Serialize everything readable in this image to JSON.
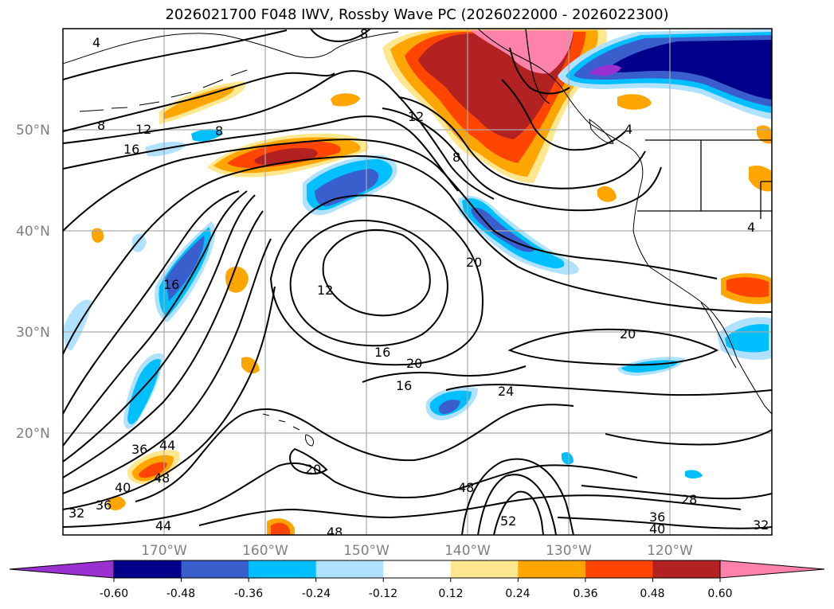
{
  "title": "2026021700 F048 IWV, Rossby Wave PC (2026022000 - 2026022300)",
  "map": {
    "lat_labels": [
      "50°N",
      "40°N",
      "30°N",
      "20°N"
    ],
    "lon_labels": [
      "170°W",
      "160°W",
      "150°W",
      "140°W",
      "130°W",
      "120°W"
    ],
    "grid_lines": true,
    "contour_labels": [
      "4",
      "8",
      "8",
      "12",
      "16",
      "8",
      "12",
      "8",
      "4",
      "4",
      "16",
      "12",
      "20",
      "16",
      "20",
      "20",
      "16",
      "24",
      "36",
      "44",
      "48",
      "40",
      "32",
      "36",
      "20",
      "48",
      "52",
      "44",
      "48",
      "28",
      "36",
      "40",
      "32"
    ]
  },
  "colorbar": {
    "colors": [
      "#9b30d0",
      "#00008b",
      "#3a5fcd",
      "#00bfff",
      "#b0e2ff",
      "#ffffff",
      "#ffe78f",
      "#ffa500",
      "#ff4500",
      "#b22222",
      "#ff82ab"
    ],
    "tick_labels": [
      "-0.60",
      "-0.48",
      "-0.36",
      "-0.24",
      "-0.12",
      "0.12",
      "0.24",
      "0.36",
      "0.48",
      "0.60"
    ],
    "extend": "both"
  }
}
